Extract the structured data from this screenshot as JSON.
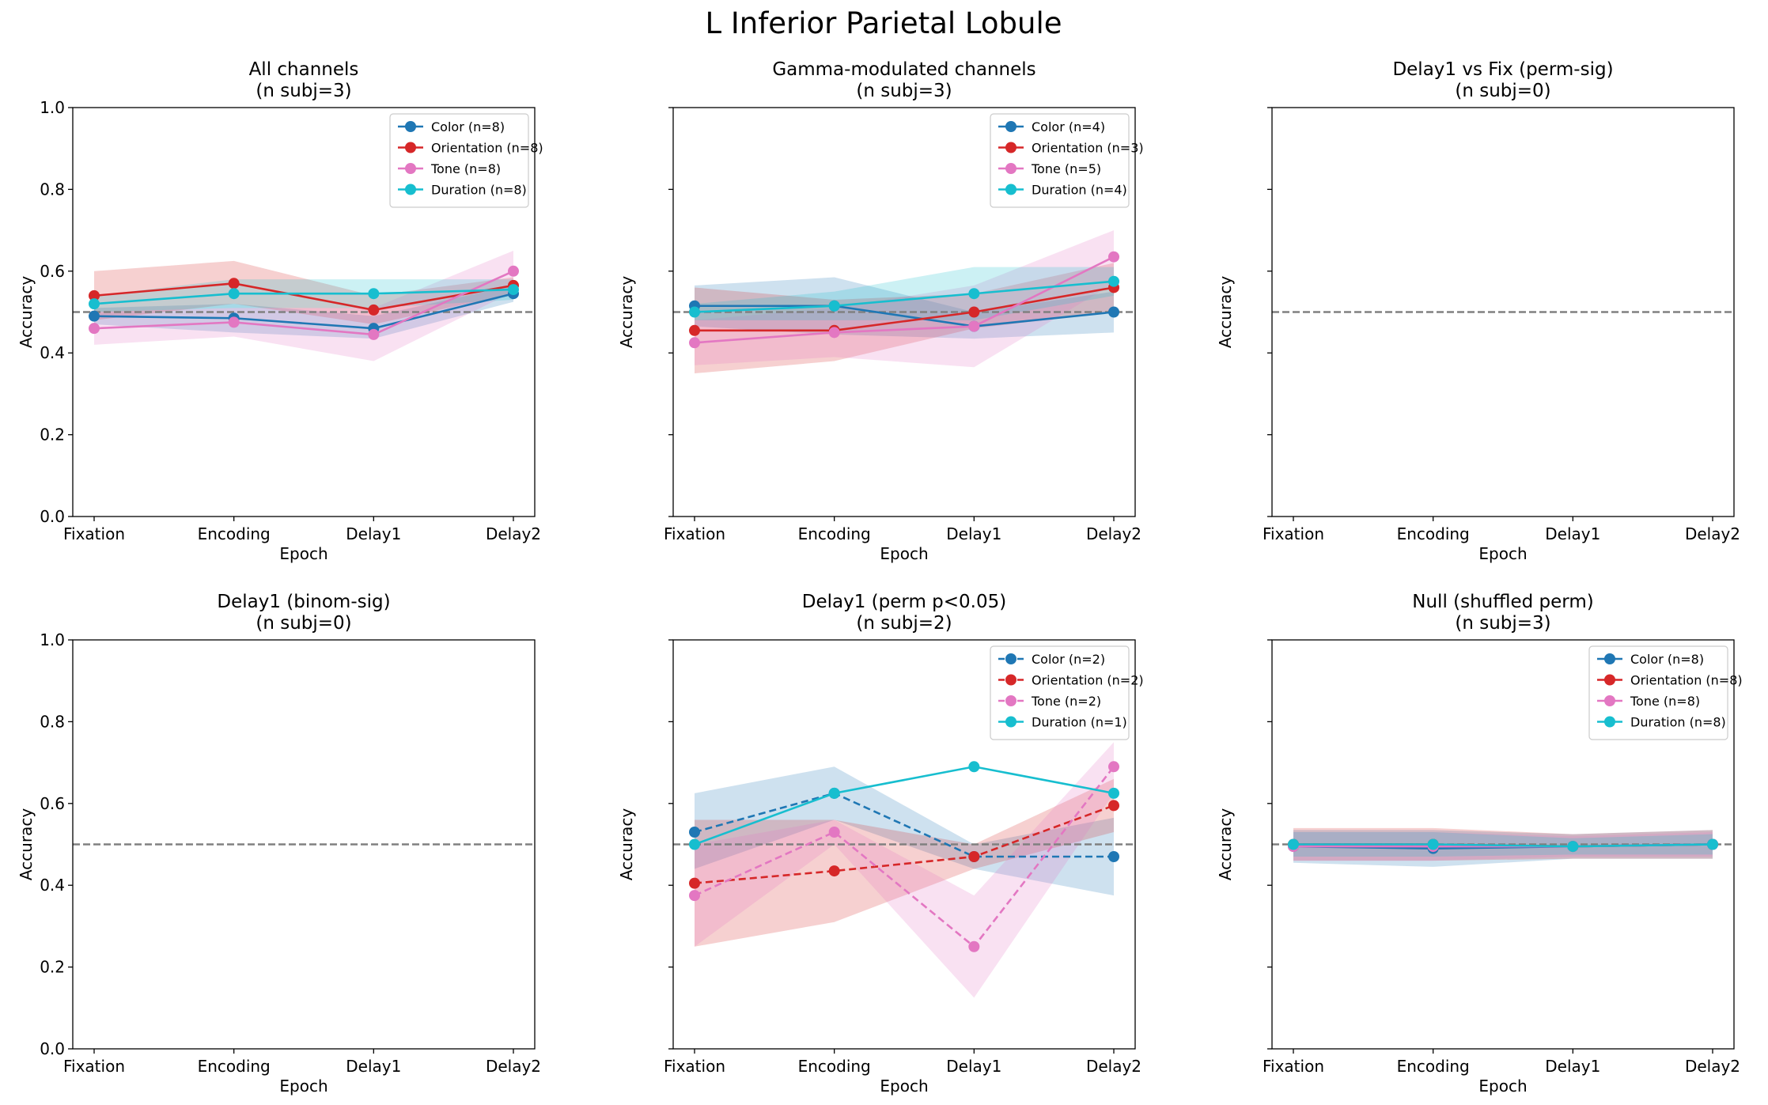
{
  "title": "L Inferior Parietal Lobule",
  "colors": {
    "color": "#1f77b4",
    "orientation": "#d62728",
    "tone": "#e377c2",
    "duration": "#17becf",
    "chance_line": "#808080",
    "axis": "#000000"
  },
  "chart_data": [
    {
      "type": "line",
      "title": "All channels",
      "subtitle": "(n subj=3)",
      "xlabel": "Epoch",
      "ylabel": "Accuracy",
      "categories": [
        "Fixation",
        "Encoding",
        "Delay1",
        "Delay2"
      ],
      "ylim": [
        0,
        1
      ],
      "yticks": [
        "0.0",
        "0.2",
        "0.4",
        "0.6",
        "0.8",
        "1.0"
      ],
      "show_ytick_labels": true,
      "chance": 0.5,
      "legend": "top-right",
      "series": [
        {
          "name": "Color (n=8)",
          "key": "color",
          "dashed": false,
          "values": [
            0.49,
            0.485,
            0.46,
            0.545
          ],
          "lower": [
            0.47,
            0.45,
            0.435,
            0.525
          ],
          "upper": [
            0.51,
            0.52,
            0.49,
            0.565
          ]
        },
        {
          "name": "Orientation (n=8)",
          "key": "orientation",
          "dashed": false,
          "values": [
            0.54,
            0.57,
            0.505,
            0.565
          ],
          "lower": [
            0.48,
            0.52,
            0.47,
            0.545
          ],
          "upper": [
            0.6,
            0.625,
            0.54,
            0.585
          ]
        },
        {
          "name": "Tone (n=8)",
          "key": "tone",
          "dashed": false,
          "values": [
            0.46,
            0.475,
            0.445,
            0.6
          ],
          "lower": [
            0.42,
            0.44,
            0.38,
            0.55
          ],
          "upper": [
            0.5,
            0.51,
            0.51,
            0.65
          ]
        },
        {
          "name": "Duration (n=8)",
          "key": "duration",
          "dashed": false,
          "values": [
            0.52,
            0.545,
            0.545,
            0.555
          ],
          "lower": [
            0.5,
            0.51,
            0.51,
            0.53
          ],
          "upper": [
            0.54,
            0.58,
            0.58,
            0.58
          ]
        }
      ]
    },
    {
      "type": "line",
      "title": "Gamma-modulated channels",
      "subtitle": "(n subj=3)",
      "xlabel": "Epoch",
      "ylabel": "Accuracy",
      "categories": [
        "Fixation",
        "Encoding",
        "Delay1",
        "Delay2"
      ],
      "ylim": [
        0,
        1
      ],
      "yticks": [
        "0.0",
        "0.2",
        "0.4",
        "0.6",
        "0.8",
        "1.0"
      ],
      "show_ytick_labels": false,
      "chance": 0.5,
      "legend": "top-right",
      "series": [
        {
          "name": "Color (n=4)",
          "key": "color",
          "dashed": false,
          "values": [
            0.515,
            0.515,
            0.465,
            0.5
          ],
          "lower": [
            0.465,
            0.445,
            0.435,
            0.45
          ],
          "upper": [
            0.565,
            0.585,
            0.5,
            0.55
          ]
        },
        {
          "name": "Orientation (n=3)",
          "key": "orientation",
          "dashed": false,
          "values": [
            0.455,
            0.455,
            0.5,
            0.56
          ],
          "lower": [
            0.35,
            0.38,
            0.46,
            0.5
          ],
          "upper": [
            0.56,
            0.53,
            0.545,
            0.62
          ]
        },
        {
          "name": "Tone (n=5)",
          "key": "tone",
          "dashed": false,
          "values": [
            0.425,
            0.45,
            0.465,
            0.635
          ],
          "lower": [
            0.37,
            0.39,
            0.365,
            0.57
          ],
          "upper": [
            0.48,
            0.51,
            0.565,
            0.7
          ]
        },
        {
          "name": "Duration (n=4)",
          "key": "duration",
          "dashed": false,
          "values": [
            0.5,
            0.515,
            0.545,
            0.575
          ],
          "lower": [
            0.48,
            0.48,
            0.48,
            0.54
          ],
          "upper": [
            0.52,
            0.55,
            0.61,
            0.61
          ]
        }
      ]
    },
    {
      "type": "line",
      "title": "Delay1 vs Fix (perm-sig)",
      "subtitle": "(n subj=0)",
      "xlabel": "Epoch",
      "ylabel": "Accuracy",
      "categories": [
        "Fixation",
        "Encoding",
        "Delay1",
        "Delay2"
      ],
      "ylim": [
        0,
        1
      ],
      "yticks": [
        "0.0",
        "0.2",
        "0.4",
        "0.6",
        "0.8",
        "1.0"
      ],
      "show_ytick_labels": false,
      "chance": 0.5,
      "legend": "none",
      "series": []
    },
    {
      "type": "line",
      "title": "Delay1 (binom-sig)",
      "subtitle": "(n subj=0)",
      "xlabel": "Epoch",
      "ylabel": "Accuracy",
      "categories": [
        "Fixation",
        "Encoding",
        "Delay1",
        "Delay2"
      ],
      "ylim": [
        0,
        1
      ],
      "yticks": [
        "0.0",
        "0.2",
        "0.4",
        "0.6",
        "0.8",
        "1.0"
      ],
      "show_ytick_labels": true,
      "chance": 0.5,
      "legend": "none",
      "series": []
    },
    {
      "type": "line",
      "title": "Delay1 (perm p<0.05)",
      "subtitle": "(n subj=2)",
      "xlabel": "Epoch",
      "ylabel": "Accuracy",
      "categories": [
        "Fixation",
        "Encoding",
        "Delay1",
        "Delay2"
      ],
      "ylim": [
        0,
        1
      ],
      "yticks": [
        "0.0",
        "0.2",
        "0.4",
        "0.6",
        "0.8",
        "1.0"
      ],
      "show_ytick_labels": false,
      "chance": 0.5,
      "legend": "top-right",
      "series": [
        {
          "name": "Color (n=2)",
          "key": "color",
          "dashed": true,
          "values": [
            0.53,
            0.625,
            0.47,
            0.47
          ],
          "lower": [
            0.44,
            0.56,
            0.44,
            0.375
          ],
          "upper": [
            0.625,
            0.69,
            0.5,
            0.565
          ]
        },
        {
          "name": "Orientation (n=2)",
          "key": "orientation",
          "dashed": true,
          "values": [
            0.405,
            0.435,
            0.47,
            0.595
          ],
          "lower": [
            0.25,
            0.31,
            0.44,
            0.53
          ],
          "upper": [
            0.56,
            0.56,
            0.5,
            0.66
          ]
        },
        {
          "name": "Tone (n=2)",
          "key": "tone",
          "dashed": true,
          "values": [
            0.375,
            0.53,
            0.25,
            0.69
          ],
          "lower": [
            0.25,
            0.5,
            0.125,
            0.625
          ],
          "upper": [
            0.5,
            0.56,
            0.375,
            0.75
          ]
        },
        {
          "name": "Duration (n=1)",
          "key": "duration",
          "dashed": false,
          "values": [
            0.5,
            0.625,
            0.69,
            0.625
          ]
        }
      ]
    },
    {
      "type": "line",
      "title": "Null (shuffled perm)",
      "subtitle": "(n subj=3)",
      "xlabel": "Epoch",
      "ylabel": "Accuracy",
      "categories": [
        "Fixation",
        "Encoding",
        "Delay1",
        "Delay2"
      ],
      "ylim": [
        0,
        1
      ],
      "yticks": [
        "0.0",
        "0.2",
        "0.4",
        "0.6",
        "0.8",
        "1.0"
      ],
      "show_ytick_labels": false,
      "chance": 0.5,
      "legend": "top-right",
      "series": [
        {
          "name": "Color (n=8)",
          "key": "color",
          "dashed": false,
          "values": [
            0.495,
            0.49,
            0.495,
            0.5
          ],
          "lower": [
            0.455,
            0.445,
            0.465,
            0.465
          ],
          "upper": [
            0.535,
            0.535,
            0.525,
            0.535
          ]
        },
        {
          "name": "Orientation (n=8)",
          "key": "orientation",
          "dashed": false,
          "values": [
            0.5,
            0.5,
            0.495,
            0.5
          ],
          "lower": [
            0.46,
            0.46,
            0.465,
            0.465
          ],
          "upper": [
            0.54,
            0.54,
            0.525,
            0.535
          ]
        },
        {
          "name": "Tone (n=8)",
          "key": "tone",
          "dashed": false,
          "values": [
            0.495,
            0.495,
            0.495,
            0.5
          ],
          "lower": [
            0.46,
            0.46,
            0.47,
            0.47
          ],
          "upper": [
            0.53,
            0.53,
            0.52,
            0.53
          ]
        },
        {
          "name": "Duration (n=8)",
          "key": "duration",
          "dashed": false,
          "values": [
            0.5,
            0.5,
            0.495,
            0.5
          ],
          "lower": [
            0.47,
            0.47,
            0.475,
            0.475
          ],
          "upper": [
            0.53,
            0.53,
            0.515,
            0.525
          ]
        }
      ]
    }
  ]
}
